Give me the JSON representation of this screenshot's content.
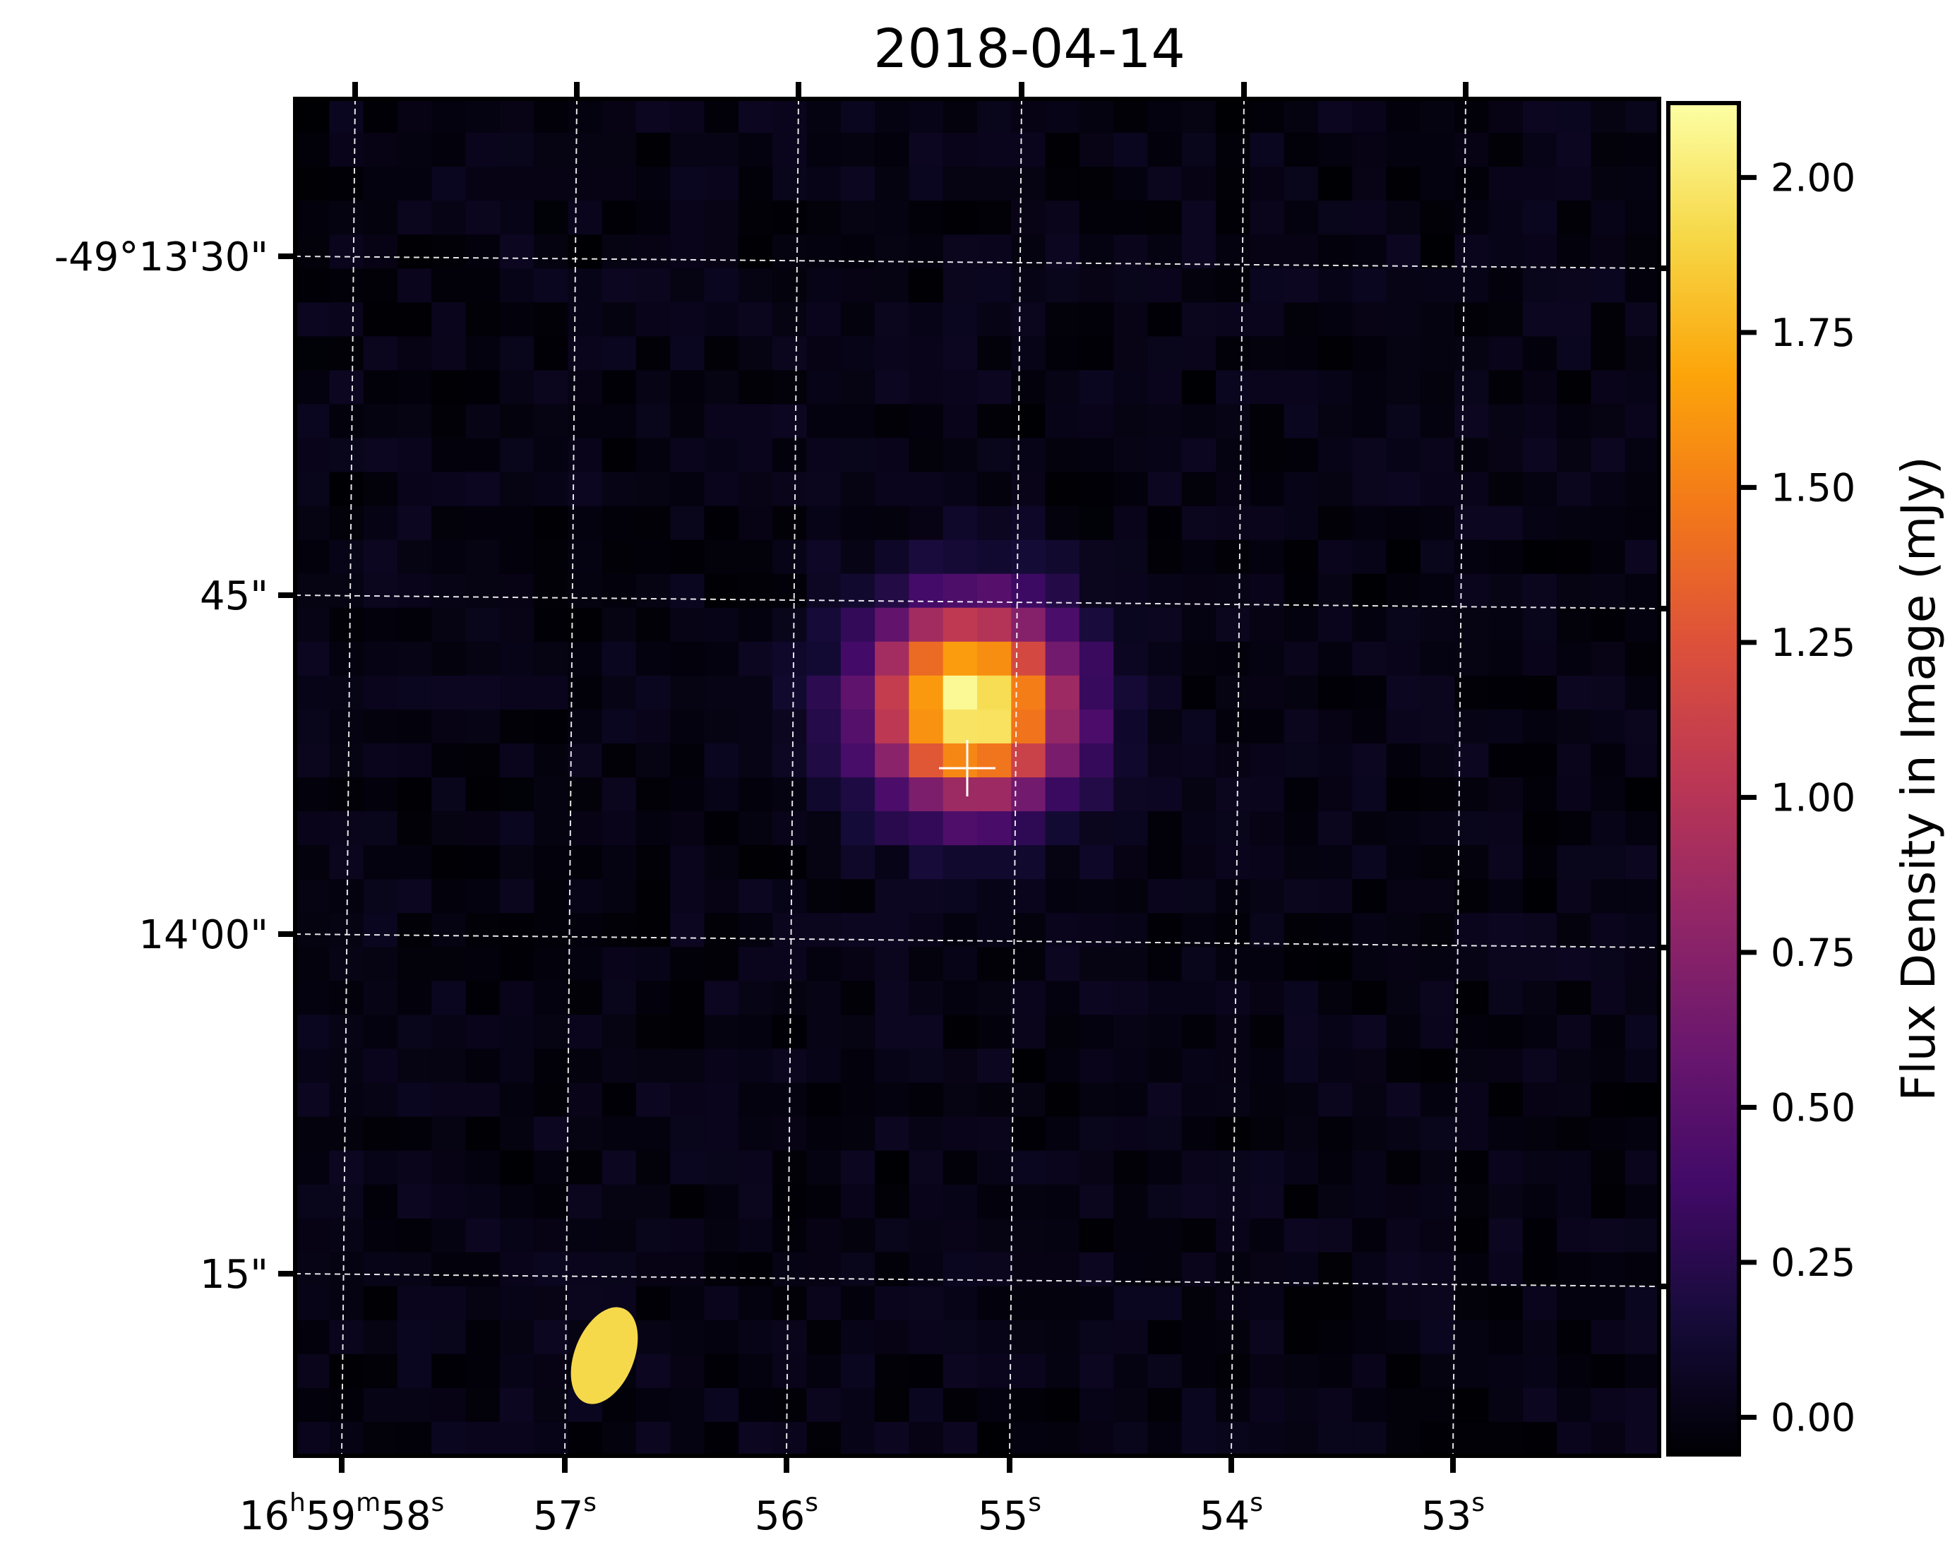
{
  "chart_data": {
    "type": "heatmap",
    "title": "2018-04-14",
    "colormap": "inferno",
    "x_axis": {
      "label": "",
      "ticks": [
        {
          "h": "16",
          "m": "59",
          "s": "58"
        },
        {
          "s": "57"
        },
        {
          "s": "56"
        },
        {
          "s": "55"
        },
        {
          "s": "54"
        },
        {
          "s": "53"
        }
      ],
      "unit_symbols": {
        "h": "h",
        "m": "m",
        "s": "s"
      },
      "grid": true
    },
    "y_axis": {
      "label": "",
      "ticks": [
        "-49°13'30\"",
        "45\"",
        "14'00\"",
        "15\""
      ],
      "grid": true
    },
    "colorbar": {
      "label": "Flux Density in Image (mJy)",
      "ticks": [
        "0.00",
        "0.25",
        "0.50",
        "0.75",
        "1.00",
        "1.25",
        "1.50",
        "1.75",
        "2.00"
      ],
      "range": [
        -0.06,
        2.12
      ]
    },
    "source": {
      "peak_flux": 2.12,
      "marker": "cross"
    },
    "beam": {
      "color": "#f5d94a",
      "position": "bottom-left"
    }
  }
}
